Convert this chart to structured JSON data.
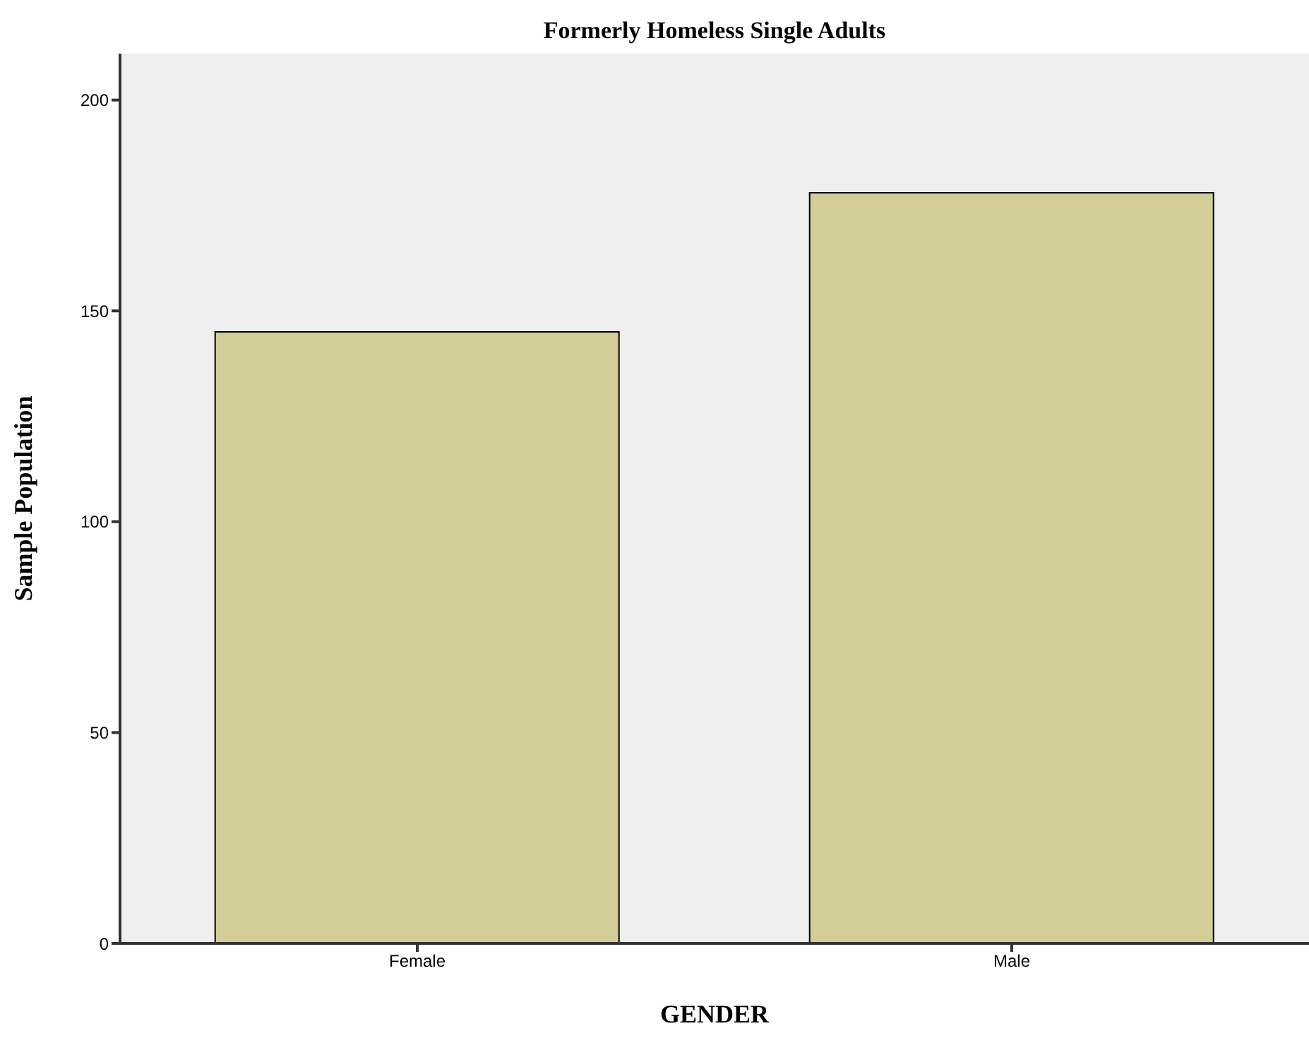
{
  "chart_data": {
    "type": "bar",
    "title": "Formerly Homeless Single Adults",
    "xlabel": "GENDER",
    "ylabel": "Sample Population",
    "categories": [
      "Female",
      "Male"
    ],
    "values": [
      145,
      178
    ],
    "color": "#d3cd98",
    "ylim": [
      0,
      211
    ],
    "yticks": [
      0,
      50,
      100,
      150,
      200
    ]
  }
}
